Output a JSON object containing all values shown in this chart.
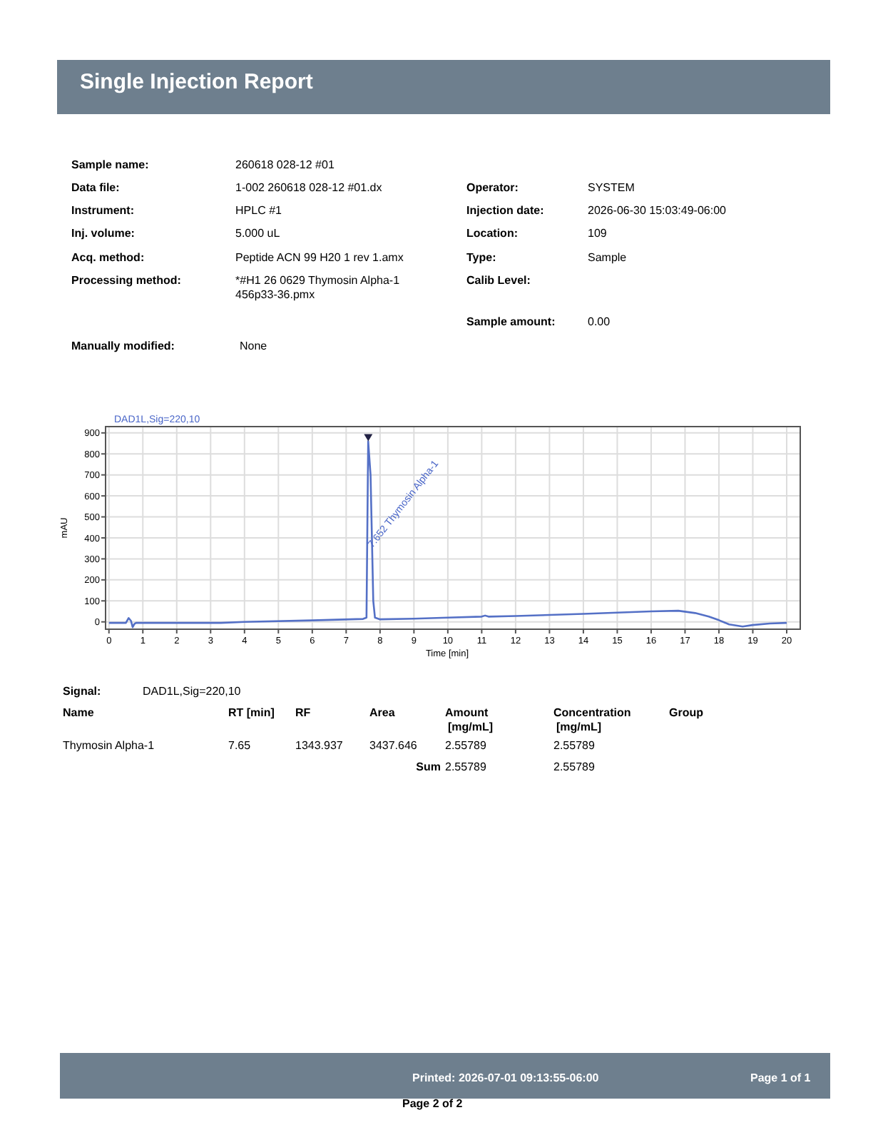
{
  "chart_data": {
    "type": "line",
    "title": "DAD1L,Sig=220,10",
    "xlabel": "Time [min]",
    "ylabel": "mAU",
    "x": [
      0,
      0.5,
      0.58,
      0.65,
      0.7,
      0.75,
      0.8,
      3.3,
      4,
      6,
      7.5,
      7.6,
      7.65,
      7.72,
      7.8,
      7.85,
      8,
      9,
      10,
      11,
      11.1,
      11.2,
      12,
      13,
      14,
      15,
      16,
      16.8,
      17.3,
      17.7,
      18,
      18.3,
      18.7,
      19,
      19.5,
      20
    ],
    "series": [
      {
        "color": "#5470c6",
        "values": [
          -5,
          -5,
          18,
          5,
          -25,
          -10,
          -5,
          -5,
          0,
          7,
          14,
          20,
          860,
          700,
          100,
          20,
          12,
          15,
          20,
          25,
          30,
          25,
          28,
          33,
          38,
          44,
          50,
          53,
          42,
          25,
          8,
          -12,
          -22,
          -15,
          -8,
          -5
        ]
      }
    ],
    "xlim": [
      -0.1,
      20.4
    ],
    "ylim": [
      -35,
      930
    ],
    "xticks": [
      0,
      1,
      2,
      3,
      4,
      5,
      6,
      7,
      8,
      9,
      10,
      11,
      12,
      13,
      14,
      15,
      16,
      17,
      18,
      19,
      20
    ],
    "yticks": [
      0,
      100,
      200,
      300,
      400,
      500,
      600,
      700,
      800,
      900
    ],
    "grid": true,
    "line_style": "solid",
    "annotations": [
      {
        "text": "7.652 Thymosin Alpha-1",
        "x": 7.652,
        "y": 860
      },
      "Single Injection Report",
      "Sample name:",
      "260618 028-12 #01",
      "Data file:",
      "1-002 260618 028-12 #01.dx",
      "Operator:",
      "SYSTEM",
      "Instrument:",
      "HPLC #1",
      "Injection date:",
      "2026-06-30 15:03:49-06:00",
      "Inj. volume:",
      "5.000 uL",
      "Location:",
      "109",
      "Acq. method:",
      "Peptide ACN 99 H20 1  rev 1.amx",
      "Type:",
      "Sample",
      "Processing method:",
      "*#H1 26 0629 Thymosin Alpha-1",
      "456p33-36.pmx",
      "Calib Level:",
      "Sample amount:",
      "0.00",
      "Manually modified:",
      "None",
      "Signal:",
      "DAD1L,Sig=220,10",
      "Name",
      "RT [min]",
      "RF",
      "Area",
      "Amount",
      "[mg/mL]",
      "Concentration",
      "[mg/mL]",
      "Group",
      "Thymosin Alpha-1",
      "7.65",
      "1343.937",
      "3437.646",
      "2.55789",
      "2.55789",
      "Sum",
      "2.55789",
      "2.55789",
      "Printed:  2026-07-01 09:13:55-06:00",
      "Page 1 of 1",
      "Page 2 of 2"
    ]
  }
}
